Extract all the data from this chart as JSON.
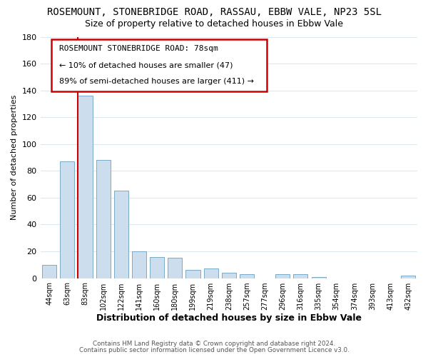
{
  "title": "ROSEMOUNT, STONEBRIDGE ROAD, RASSAU, EBBW VALE, NP23 5SL",
  "subtitle": "Size of property relative to detached houses in Ebbw Vale",
  "xlabel": "Distribution of detached houses by size in Ebbw Vale",
  "ylabel": "Number of detached properties",
  "categories": [
    "44sqm",
    "63sqm",
    "83sqm",
    "102sqm",
    "122sqm",
    "141sqm",
    "160sqm",
    "180sqm",
    "199sqm",
    "219sqm",
    "238sqm",
    "257sqm",
    "277sqm",
    "296sqm",
    "316sqm",
    "335sqm",
    "354sqm",
    "374sqm",
    "393sqm",
    "413sqm",
    "432sqm"
  ],
  "values": [
    10,
    87,
    136,
    88,
    65,
    20,
    16,
    15,
    6,
    7,
    4,
    3,
    0,
    3,
    3,
    1,
    0,
    0,
    0,
    0,
    2
  ],
  "bar_color": "#ccdded",
  "bar_edge_color": "#7aaac8",
  "vline_color": "#cc0000",
  "ylim": [
    0,
    180
  ],
  "yticks": [
    0,
    20,
    40,
    60,
    80,
    100,
    120,
    140,
    160,
    180
  ],
  "annotation_title": "ROSEMOUNT STONEBRIDGE ROAD: 78sqm",
  "annotation_line1": "← 10% of detached houses are smaller (47)",
  "annotation_line2": "89% of semi-detached houses are larger (411) →",
  "footer1": "Contains HM Land Registry data © Crown copyright and database right 2024.",
  "footer2": "Contains public sector information licensed under the Open Government Licence v3.0.",
  "bg_color": "#ffffff",
  "grid_color": "#dce8f0",
  "title_fontsize": 10,
  "subtitle_fontsize": 9
}
